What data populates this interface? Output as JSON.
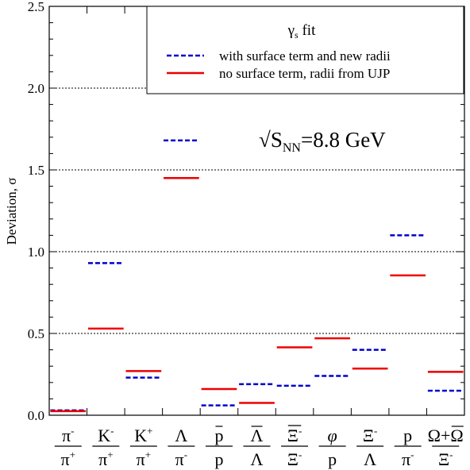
{
  "chart_data": {
    "type": "scatter",
    "ylabel": "Deviation, σ",
    "ylim": [
      0,
      2.5
    ],
    "yticks": [
      0.0,
      0.5,
      1.0,
      1.5,
      2.0,
      2.5
    ],
    "ytick_labels": [
      "0.0",
      "0.5",
      "1.0",
      "1.5",
      "2.0",
      "2.5"
    ],
    "dotted_grid_y": [
      0.5,
      1.0,
      1.5,
      2.0
    ],
    "annotation": {
      "prefix": "√",
      "main": "S",
      "sub": "NN",
      "suffix": "=8.8 GeV"
    },
    "legend": {
      "position": "top-right",
      "title_main": "γ",
      "title_sub": "s",
      "title_suffix": " fit"
    },
    "categories": [
      {
        "num": "π",
        "num_sup": "-",
        "den": "π",
        "den_sup": "+",
        "num_bar": false,
        "den_bar": false
      },
      {
        "num": "K",
        "num_sup": "-",
        "den": "π",
        "den_sup": "+",
        "num_bar": false,
        "den_bar": false
      },
      {
        "num": "K",
        "num_sup": "+",
        "den": "π",
        "den_sup": "+",
        "num_bar": false,
        "den_bar": false
      },
      {
        "num": "Λ",
        "num_sup": "",
        "den": "π",
        "den_sup": "-",
        "num_bar": false,
        "den_bar": false
      },
      {
        "num": "p",
        "num_sup": "",
        "den": "p",
        "den_sup": "",
        "num_bar": true,
        "den_bar": false
      },
      {
        "num": "Λ",
        "num_sup": "",
        "den": "Λ",
        "den_sup": "",
        "num_bar": true,
        "den_bar": false
      },
      {
        "num": "Ξ",
        "num_sup": "-",
        "den": "Ξ",
        "den_sup": "-",
        "num_bar": true,
        "den_bar": false
      },
      {
        "num": "φ",
        "num_sup": "",
        "den": "p",
        "den_sup": "",
        "num_bar": false,
        "den_bar": false,
        "num_italic": true
      },
      {
        "num": "Ξ",
        "num_sup": "-",
        "den": "Λ",
        "den_sup": "",
        "num_bar": false,
        "den_bar": false
      },
      {
        "num": "p",
        "num_sup": "",
        "den": "π",
        "den_sup": "-",
        "num_bar": false,
        "den_bar": false
      },
      {
        "num": "Ω+Ω",
        "num_sup": "",
        "den": "Ξ",
        "den_sup": "-",
        "num_bar": false,
        "den_bar": false,
        "num_partial_bar": true
      }
    ],
    "series": [
      {
        "name": "with surface term and new radii",
        "color": "#0000cc",
        "style": "dashed",
        "values": [
          0.03,
          0.93,
          0.23,
          1.68,
          0.06,
          0.19,
          0.18,
          0.24,
          0.4,
          1.1,
          0.15
        ]
      },
      {
        "name": "no surface term, radii from UJP",
        "color": "#ee0000",
        "style": "solid",
        "values": [
          0.025,
          0.53,
          0.27,
          1.45,
          0.16,
          0.075,
          0.415,
          0.47,
          0.285,
          0.855,
          0.265
        ]
      }
    ]
  }
}
